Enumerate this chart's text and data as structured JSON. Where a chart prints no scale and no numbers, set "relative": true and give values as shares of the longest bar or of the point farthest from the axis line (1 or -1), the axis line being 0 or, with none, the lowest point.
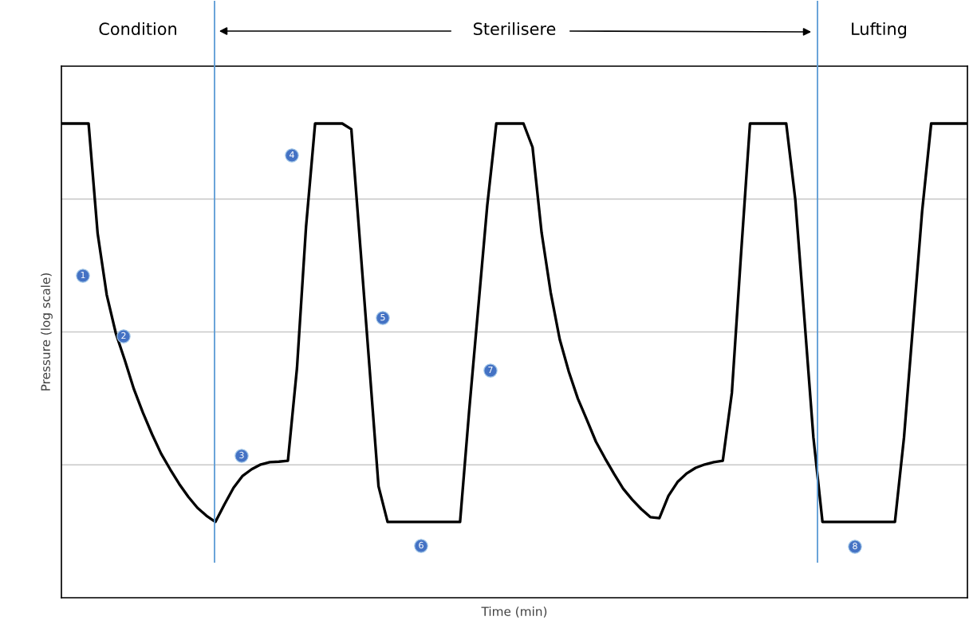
{
  "chart_data": {
    "type": "line",
    "relative": true,
    "xlabel": "Time (min)",
    "ylabel": "Pressure (log scale)",
    "categories": [
      null,
      null,
      null,
      null,
      null,
      null,
      null,
      null,
      null,
      null,
      null,
      null,
      null,
      null,
      null,
      null,
      null,
      null,
      null,
      null,
      null,
      null,
      null,
      null,
      null,
      null,
      null,
      null,
      null,
      null,
      null,
      null,
      null,
      null,
      null,
      null,
      null,
      null,
      null,
      null,
      null,
      null,
      null,
      null,
      null,
      null,
      null,
      null,
      null,
      null,
      null,
      null,
      null,
      null,
      null,
      null,
      null,
      null,
      null,
      null,
      null,
      null,
      null,
      null,
      null,
      null,
      null,
      null,
      null,
      null,
      null,
      null,
      null,
      null,
      null,
      null,
      null,
      null,
      null,
      null,
      null,
      null,
      null,
      null,
      null,
      null,
      null,
      null,
      null,
      null,
      null,
      null,
      null,
      null,
      null,
      null,
      null,
      null,
      null,
      null,
      null
    ],
    "series": [
      {
        "color": "#000000",
        "values": [
          1.0,
          1.0,
          1.0,
          1.0,
          0.768,
          0.639,
          0.558,
          0.501,
          0.44,
          0.39,
          0.345,
          0.304,
          0.271,
          0.24,
          0.213,
          0.19,
          0.173,
          0.16,
          0.197,
          0.232,
          0.257,
          0.271,
          0.281,
          0.286,
          0.287,
          0.289,
          0.484,
          0.782,
          1.0,
          1.0,
          1.0,
          1.0,
          0.988,
          0.738,
          0.487,
          0.235,
          0.16,
          0.16,
          0.16,
          0.16,
          0.16,
          0.16,
          0.16,
          0.16,
          0.16,
          0.393,
          0.61,
          0.827,
          1.0,
          1.0,
          1.0,
          1.0,
          0.95,
          0.77,
          0.644,
          0.545,
          0.477,
          0.42,
          0.375,
          0.329,
          0.294,
          0.261,
          0.23,
          0.207,
          0.187,
          0.17,
          0.168,
          0.215,
          0.244,
          0.262,
          0.274,
          0.281,
          0.286,
          0.289,
          0.432,
          0.721,
          1.0,
          1.0,
          1.0,
          1.0,
          1.0,
          0.84,
          0.59,
          0.338,
          0.16,
          0.16,
          0.16,
          0.16,
          0.16,
          0.16,
          0.16,
          0.16,
          0.16,
          0.338,
          0.576,
          0.815,
          1.0,
          1.0,
          1.0,
          1.0,
          1.0
        ]
      }
    ],
    "annotations": [
      "Condition",
      "Sterilisere",
      "Lufting",
      "1",
      "2",
      "3",
      "4",
      "5",
      "6",
      "7",
      "8"
    ],
    "grid": "y",
    "tick_labels": false,
    "line_style": "solid",
    "marker": "none"
  }
}
